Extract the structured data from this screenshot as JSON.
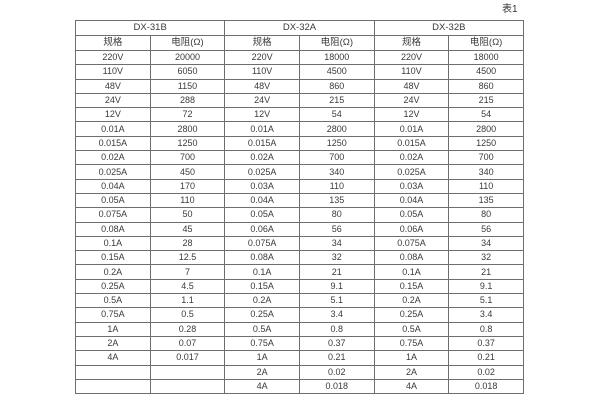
{
  "caption": "表1",
  "colors": {
    "background": "#ffffff",
    "border": "#6e6e6e",
    "text": "#3a3a3a"
  },
  "table": {
    "num_rows": 24,
    "groups": [
      {
        "title": "DX-31B",
        "col_headers": [
          "规格",
          "电阻(Ω)"
        ],
        "rows": [
          [
            "220V",
            "20000"
          ],
          [
            "110V",
            "6050"
          ],
          [
            "48V",
            "1150"
          ],
          [
            "24V",
            "288"
          ],
          [
            "12V",
            "72"
          ],
          [
            "0.01A",
            "2800"
          ],
          [
            "0.015A",
            "1250"
          ],
          [
            "0.02A",
            "700"
          ],
          [
            "0.025A",
            "450"
          ],
          [
            "0.04A",
            "170"
          ],
          [
            "0.05A",
            "110"
          ],
          [
            "0.075A",
            "50"
          ],
          [
            "0.08A",
            "45"
          ],
          [
            "0.1A",
            "28"
          ],
          [
            "0.15A",
            "12.5"
          ],
          [
            "0.2A",
            "7"
          ],
          [
            "0.25A",
            "4.5"
          ],
          [
            "0.5A",
            "1.1"
          ],
          [
            "0.75A",
            "0.5"
          ],
          [
            "1A",
            "0.28"
          ],
          [
            "2A",
            "0.07"
          ],
          [
            "4A",
            "0.017"
          ],
          [
            "",
            ""
          ],
          [
            "",
            ""
          ]
        ]
      },
      {
        "title": "DX-32A",
        "col_headers": [
          "规格",
          "电阻(Ω)"
        ],
        "rows": [
          [
            "220V",
            "18000"
          ],
          [
            "110V",
            "4500"
          ],
          [
            "48V",
            "860"
          ],
          [
            "24V",
            "215"
          ],
          [
            "12V",
            "54"
          ],
          [
            "0.01A",
            "2800"
          ],
          [
            "0.015A",
            "1250"
          ],
          [
            "0.02A",
            "700"
          ],
          [
            "0.025A",
            "340"
          ],
          [
            "0.03A",
            "110"
          ],
          [
            "0.04A",
            "135"
          ],
          [
            "0.05A",
            "80"
          ],
          [
            "0.06A",
            "56"
          ],
          [
            "0.075A",
            "34"
          ],
          [
            "0.08A",
            "32"
          ],
          [
            "0.1A",
            "21"
          ],
          [
            "0.15A",
            "9.1"
          ],
          [
            "0.2A",
            "5.1"
          ],
          [
            "0.25A",
            "3.4"
          ],
          [
            "0.5A",
            "0.8"
          ],
          [
            "0.75A",
            "0.37"
          ],
          [
            "1A",
            "0.21"
          ],
          [
            "2A",
            "0.02"
          ],
          [
            "4A",
            "0.018"
          ]
        ]
      },
      {
        "title": "DX-32B",
        "col_headers": [
          "规格",
          "电阻(Ω)"
        ],
        "rows": [
          [
            "220V",
            "18000"
          ],
          [
            "110V",
            "4500"
          ],
          [
            "48V",
            "860"
          ],
          [
            "24V",
            "215"
          ],
          [
            "12V",
            "54"
          ],
          [
            "0.01A",
            "2800"
          ],
          [
            "0.015A",
            "1250"
          ],
          [
            "0.02A",
            "700"
          ],
          [
            "0.025A",
            "340"
          ],
          [
            "0.03A",
            "110"
          ],
          [
            "0.04A",
            "135"
          ],
          [
            "0.05A",
            "80"
          ],
          [
            "0.06A",
            "56"
          ],
          [
            "0.075A",
            "34"
          ],
          [
            "0.08A",
            "32"
          ],
          [
            "0.1A",
            "21"
          ],
          [
            "0.15A",
            "9.1"
          ],
          [
            "0.2A",
            "5.1"
          ],
          [
            "0.25A",
            "3.4"
          ],
          [
            "0.5A",
            "0.8"
          ],
          [
            "0.75A",
            "0.37"
          ],
          [
            "1A",
            "0.21"
          ],
          [
            "2A",
            "0.02"
          ],
          [
            "4A",
            "0.018"
          ]
        ]
      }
    ]
  }
}
